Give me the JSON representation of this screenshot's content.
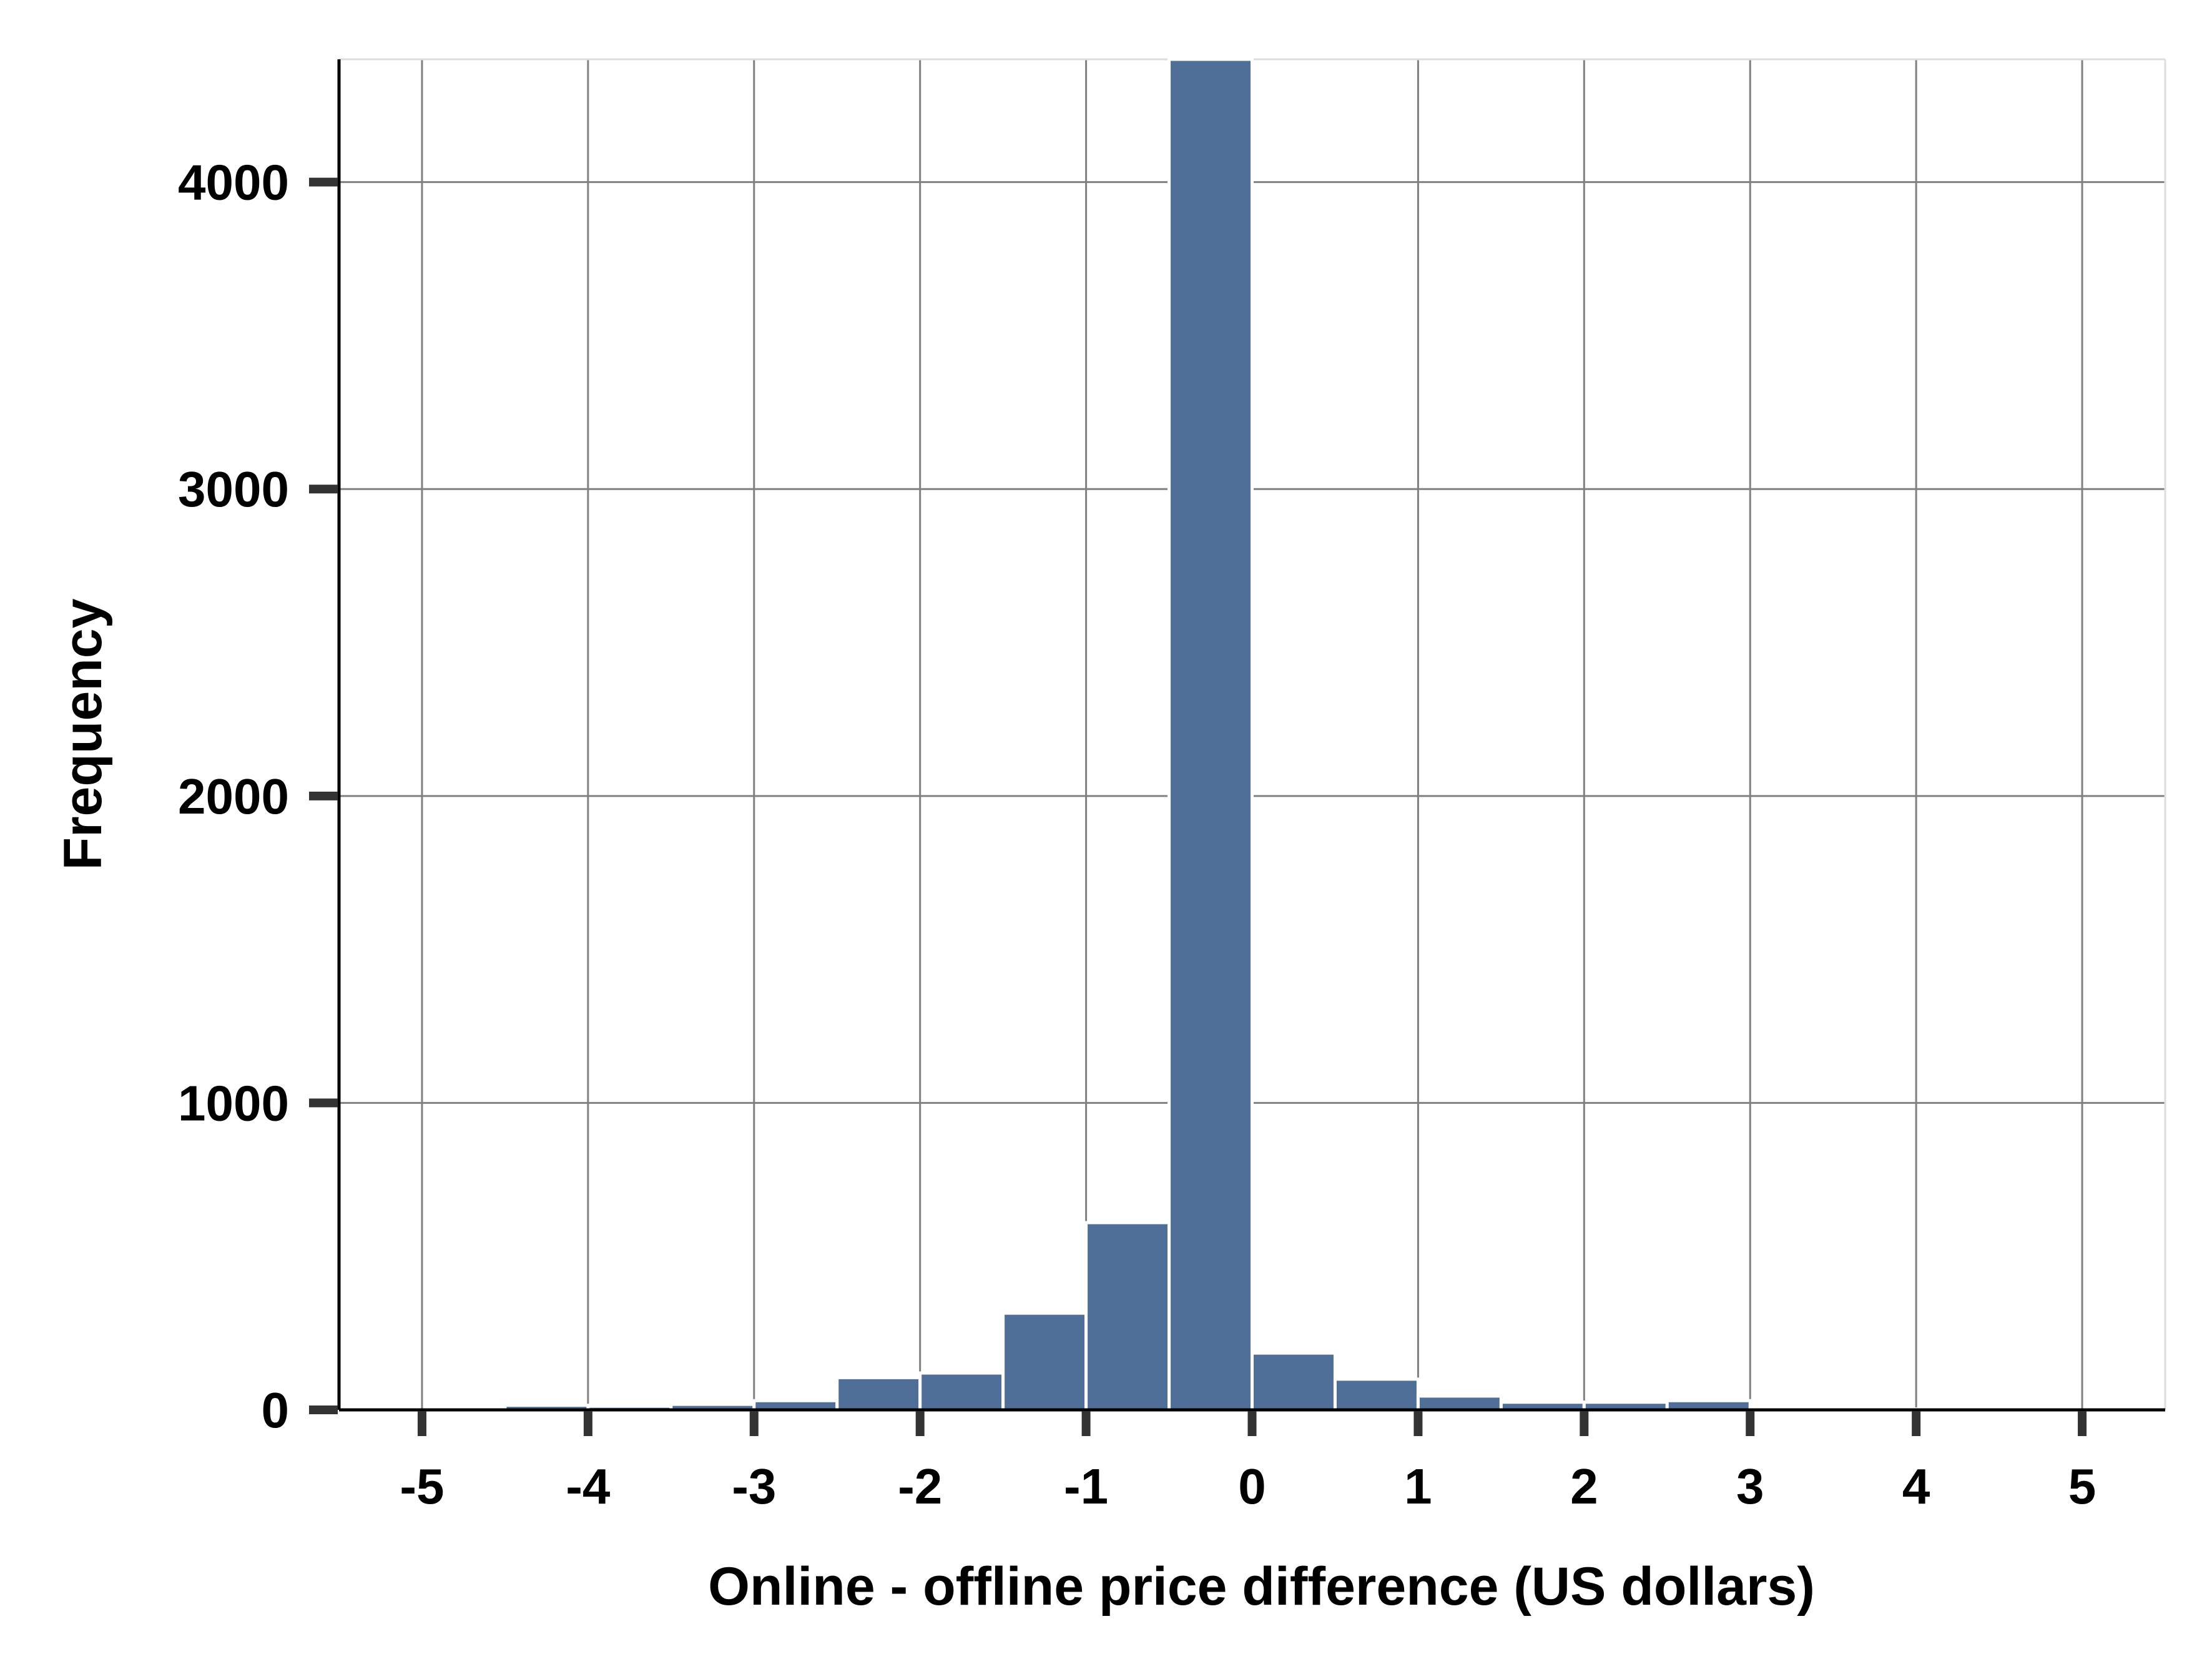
{
  "chart_data": {
    "type": "bar",
    "title": "",
    "xlabel": "Online - offline price difference (US dollars)",
    "ylabel": "Frequency",
    "xlim": [
      -5.5,
      5.5
    ],
    "ylim": [
      0,
      4400
    ],
    "bin_width": 0.5,
    "xticks": [
      -5,
      -4,
      -3,
      -2,
      -1,
      0,
      1,
      2,
      3,
      4,
      5
    ],
    "yticks": [
      0,
      1000,
      2000,
      3000,
      4000
    ],
    "grid": true,
    "bar_color": "#4f6f99",
    "bins": [
      {
        "x0": -5.0,
        "x1": -4.5,
        "value": 0
      },
      {
        "x0": -4.5,
        "x1": -4.0,
        "value": 15
      },
      {
        "x0": -4.0,
        "x1": -3.5,
        "value": 12
      },
      {
        "x0": -3.5,
        "x1": -3.0,
        "value": 18
      },
      {
        "x0": -3.0,
        "x1": -2.5,
        "value": 30
      },
      {
        "x0": -2.5,
        "x1": -2.0,
        "value": 105
      },
      {
        "x0": -2.0,
        "x1": -1.5,
        "value": 120
      },
      {
        "x0": -1.5,
        "x1": -1.0,
        "value": 315
      },
      {
        "x0": -1.0,
        "x1": -0.5,
        "value": 610
      },
      {
        "x0": -0.5,
        "x1": 0.0,
        "value": 4400
      },
      {
        "x0": 0.0,
        "x1": 0.5,
        "value": 185
      },
      {
        "x0": 0.5,
        "x1": 1.0,
        "value": 100
      },
      {
        "x0": 1.0,
        "x1": 1.5,
        "value": 45
      },
      {
        "x0": 1.5,
        "x1": 2.0,
        "value": 25
      },
      {
        "x0": 2.0,
        "x1": 2.5,
        "value": 25
      },
      {
        "x0": 2.5,
        "x1": 3.0,
        "value": 30
      },
      {
        "x0": 3.0,
        "x1": 3.5,
        "value": 3
      },
      {
        "x0": 3.5,
        "x1": 4.0,
        "value": 3
      },
      {
        "x0": 4.0,
        "x1": 4.5,
        "value": 2
      }
    ]
  }
}
